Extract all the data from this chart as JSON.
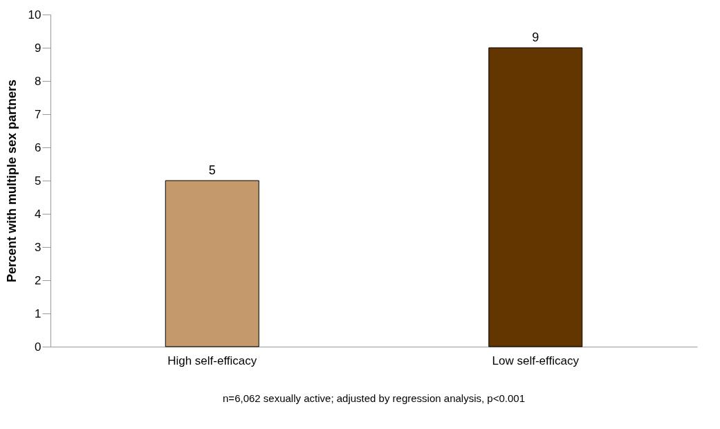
{
  "chart_data": {
    "type": "bar",
    "ylabel": "Percent with multiple sex partners",
    "categories": [
      "High self-efficacy",
      "Low self-efficacy"
    ],
    "values": [
      5,
      9
    ],
    "colors": [
      "#c49a6c",
      "#633600"
    ],
    "ylim": [
      0,
      10
    ],
    "yticks": [
      0,
      1,
      2,
      3,
      4,
      5,
      6,
      7,
      8,
      9,
      10
    ],
    "grid": false,
    "data_labels": true,
    "annotations": [
      "n=6,062 sexually active; adjusted by regression analysis, p<0.001"
    ]
  }
}
